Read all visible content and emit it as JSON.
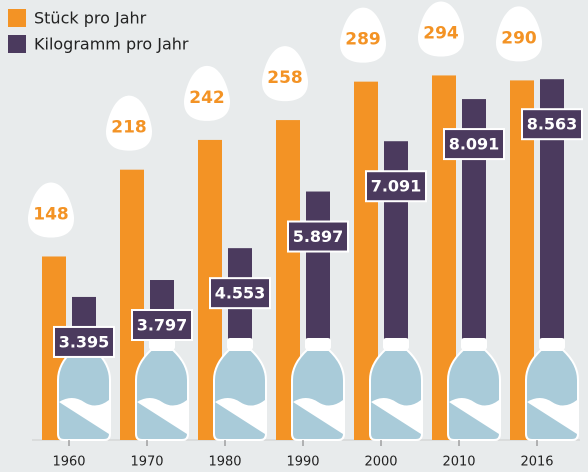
{
  "chart_data": {
    "type": "bar",
    "categories": [
      "1960",
      "1970",
      "1980",
      "1990",
      "2000",
      "2010",
      "2016"
    ],
    "series": [
      {
        "name": "Stück pro Jahr",
        "color": "#f39325",
        "values": [
          148,
          218,
          242,
          258,
          289,
          294,
          290
        ]
      },
      {
        "name": "Kilogramm pro Jahr",
        "color": "#4b3a5e",
        "axis": "y2",
        "values": [
          3.395,
          3.797,
          4.553,
          5.897,
          7.091,
          8.091,
          8.563
        ]
      }
    ],
    "ylim": [
      0,
      350
    ],
    "y2lim": [
      0,
      10.3
    ],
    "legend": "top-left"
  }
}
